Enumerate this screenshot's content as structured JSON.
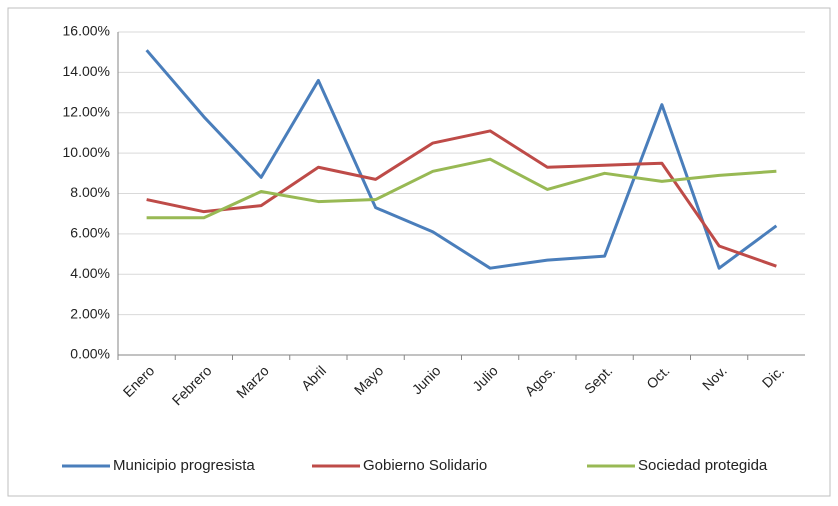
{
  "chart_data": {
    "type": "line",
    "categories": [
      "Enero",
      "Febrero",
      "Marzo",
      "Abril",
      "Mayo",
      "Junio",
      "Julio",
      "Agos.",
      "Sept.",
      "Oct.",
      "Nov.",
      "Dic."
    ],
    "series": [
      {
        "name": "Municipio progresista",
        "color": "#4a7ebb",
        "values": [
          15.1,
          11.8,
          8.8,
          13.6,
          7.3,
          6.1,
          4.3,
          4.7,
          4.9,
          12.4,
          4.3,
          6.4
        ]
      },
      {
        "name": "Gobierno Solidario",
        "color": "#be4b48",
        "values": [
          7.7,
          7.1,
          7.4,
          9.3,
          8.7,
          10.5,
          11.1,
          9.3,
          9.4,
          9.5,
          5.4,
          4.4
        ]
      },
      {
        "name": "Sociedad protegida",
        "color": "#98b954",
        "values": [
          6.8,
          6.8,
          8.1,
          7.6,
          7.7,
          9.1,
          9.7,
          8.2,
          9.0,
          8.6,
          8.9,
          9.1
        ]
      }
    ],
    "ylim": [
      0,
      16
    ],
    "yticks": [
      {
        "value": 0,
        "label": "0.00%"
      },
      {
        "value": 2,
        "label": "2.00%"
      },
      {
        "value": 4,
        "label": "4.00%"
      },
      {
        "value": 6,
        "label": "6.00%"
      },
      {
        "value": 8,
        "label": "8.00%"
      },
      {
        "value": 10,
        "label": "10.00%"
      },
      {
        "value": 12,
        "label": "12.00%"
      },
      {
        "value": 14,
        "label": "14.00%"
      },
      {
        "value": 16,
        "label": "16.00%"
      }
    ],
    "grid": true,
    "legend": "bottom"
  }
}
